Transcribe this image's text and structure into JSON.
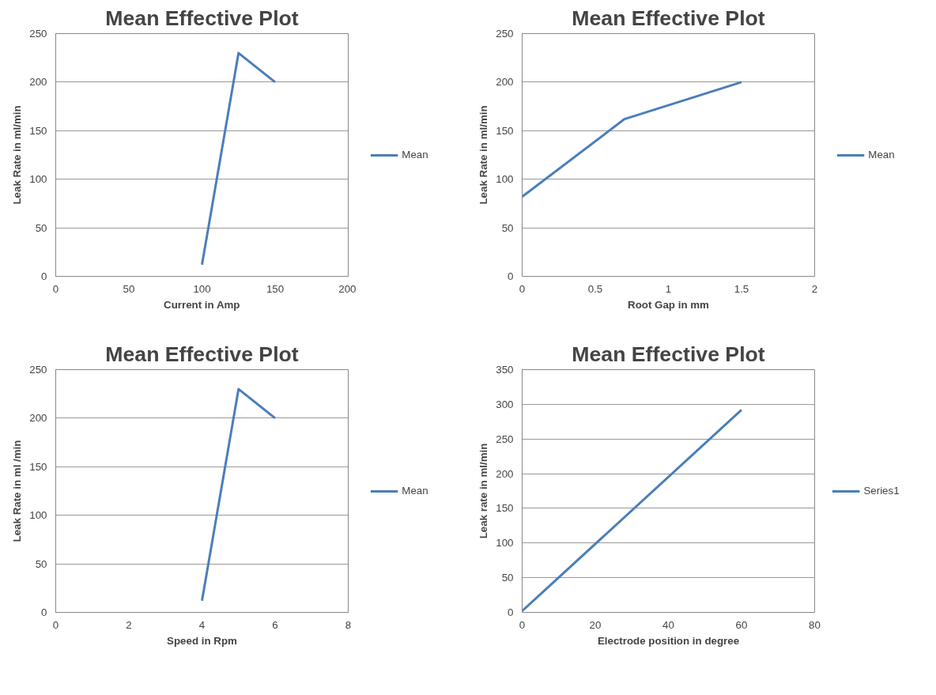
{
  "chart_data": [
    {
      "type": "line",
      "title": "Mean Effective Plot",
      "xlabel": "Current in Amp",
      "ylabel": "Leak Rate in ml/min",
      "x": [
        100,
        125,
        150
      ],
      "series": [
        {
          "name": "Mean",
          "color": "#4a7ebb",
          "values": [
            12,
            230,
            200
          ]
        }
      ],
      "xlim": [
        0,
        200
      ],
      "xticks": [
        0,
        50,
        100,
        150,
        200
      ],
      "ylim": [
        0,
        250
      ],
      "yticks": [
        0,
        50,
        100,
        150,
        200,
        250
      ],
      "grid": "y",
      "legend": "right",
      "marker": "none",
      "line_style": "solid"
    },
    {
      "type": "line",
      "title": "Mean Effective Plot",
      "xlabel": "Root Gap in mm",
      "ylabel": "Leak Rate in ml/min",
      "x": [
        0,
        0.7,
        1.5
      ],
      "series": [
        {
          "name": "Mean",
          "color": "#4a7ebb",
          "values": [
            82,
            162,
            200
          ]
        }
      ],
      "xlim": [
        0,
        2
      ],
      "xticks": [
        0,
        0.5,
        1,
        1.5,
        2
      ],
      "ylim": [
        0,
        250
      ],
      "yticks": [
        0,
        50,
        100,
        150,
        200,
        250
      ],
      "grid": "y",
      "legend": "right",
      "marker": "none",
      "line_style": "solid"
    },
    {
      "type": "line",
      "title": "Mean Effective Plot",
      "xlabel": "Speed in Rpm",
      "ylabel": "Leak Rate in ml /min",
      "x": [
        4,
        5,
        6
      ],
      "series": [
        {
          "name": "Mean",
          "color": "#4a7ebb",
          "values": [
            12,
            230,
            200
          ]
        }
      ],
      "xlim": [
        0,
        8
      ],
      "xticks": [
        0,
        2,
        4,
        6,
        8
      ],
      "ylim": [
        0,
        250
      ],
      "yticks": [
        0,
        50,
        100,
        150,
        200,
        250
      ],
      "grid": "y",
      "legend": "right",
      "marker": "none",
      "line_style": "solid"
    },
    {
      "type": "line",
      "title": "Mean Effective Plot",
      "xlabel": "Electrode position in degree",
      "ylabel": "Leak rate in ml/min",
      "x": [
        0,
        60
      ],
      "series": [
        {
          "name": "Series1",
          "color": "#4a7ebb",
          "values": [
            2,
            292
          ]
        }
      ],
      "xlim": [
        0,
        80
      ],
      "xticks": [
        0,
        20,
        40,
        60,
        80
      ],
      "ylim": [
        0,
        350
      ],
      "yticks": [
        0,
        50,
        100,
        150,
        200,
        250,
        300,
        350
      ],
      "grid": "y",
      "legend": "right",
      "marker": "none",
      "line_style": "solid"
    }
  ]
}
